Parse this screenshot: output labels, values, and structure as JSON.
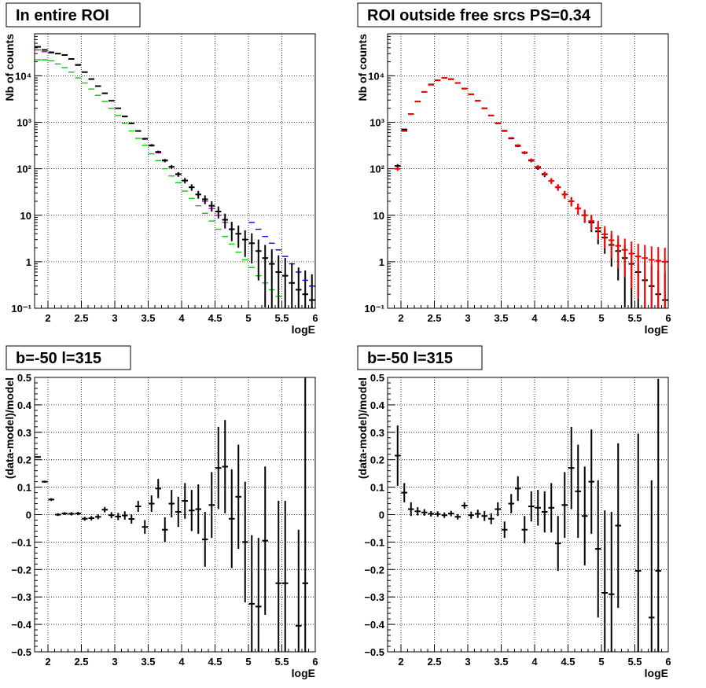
{
  "colors": {
    "data": "#000000",
    "model": "#ff0000",
    "blue": "#0000ff",
    "green": "#00cc00",
    "magenta": "#cc00cc"
  },
  "chart_data": [
    {
      "type": "scatter",
      "title": "In entire ROI",
      "xlabel": "logE",
      "ylabel": "Nb of counts",
      "xlim": [
        1.8,
        6
      ],
      "ylim": [
        0.1,
        80000
      ],
      "yscale": "log",
      "grid": true,
      "xticks": [
        {
          "v": 2,
          "t": "2"
        },
        {
          "v": 2.5,
          "t": "2.5"
        },
        {
          "v": 3,
          "t": "3"
        },
        {
          "v": 3.5,
          "t": "3.5"
        },
        {
          "v": 4,
          "t": "4"
        },
        {
          "v": 4.5,
          "t": "4.5"
        },
        {
          "v": 5,
          "t": "5"
        },
        {
          "v": 5.5,
          "t": "5.5"
        },
        {
          "v": 6,
          "t": "6"
        }
      ],
      "yticks": [
        {
          "v": 0.1,
          "t": "10⁻¹"
        },
        {
          "v": 1,
          "t": "1"
        },
        {
          "v": 10,
          "t": "10"
        },
        {
          "v": 100,
          "t": "10²"
        },
        {
          "v": 1000,
          "t": "10³"
        },
        {
          "v": 10000,
          "t": "10⁴"
        }
      ],
      "bin_halfwidth": 0.05,
      "series": [
        {
          "color": "#00cc00",
          "errbars": false,
          "x": [
            1.85,
            1.95,
            2.05,
            2.15,
            2.25,
            2.35,
            2.45,
            2.55,
            2.65,
            2.75,
            2.85,
            2.95,
            3.05,
            3.15,
            3.25,
            3.35,
            3.45,
            3.55,
            3.65,
            3.75,
            3.85,
            3.95,
            4.05,
            4.15,
            4.25,
            4.35,
            4.45,
            4.55,
            4.65,
            4.75,
            4.85,
            4.95,
            5.05,
            5.15,
            5.25,
            5.35,
            5.45
          ],
          "y": [
            22000,
            22000,
            21000,
            18000,
            15000,
            12000,
            9000,
            7000,
            5200,
            3800,
            2800,
            2000,
            1400,
            950,
            650,
            450,
            320,
            210,
            150,
            100,
            70,
            50,
            33,
            23,
            16,
            11,
            7.5,
            5,
            3.5,
            2.4,
            1.6,
            1.1,
            0.75,
            0.5,
            0.35,
            0.25,
            0.18
          ]
        },
        {
          "color": "#0000ff",
          "errbars": false,
          "x": [
            5.05,
            5.15,
            5.25,
            5.35,
            5.45,
            5.55,
            5.65,
            5.75,
            5.85,
            5.95
          ],
          "y": [
            7,
            5,
            3.5,
            2.5,
            1.8,
            1.3,
            0.9,
            0.6,
            0.4,
            0.3
          ]
        },
        {
          "color": "#cc00cc",
          "errbars": false,
          "x": [
            1.85,
            1.95,
            2.05,
            2.15,
            2.25,
            2.35,
            2.45,
            2.55,
            2.65,
            2.75,
            2.85,
            2.95,
            3.05,
            3.15,
            3.25,
            3.35,
            3.45,
            3.55,
            3.65,
            3.75,
            3.85,
            3.95,
            4.05,
            4.15,
            4.25,
            4.35,
            4.45,
            4.55,
            4.65,
            4.75
          ],
          "y": [
            36000,
            33000,
            31000,
            30000,
            28000,
            23000,
            17500,
            12000,
            8500,
            6000,
            4200,
            2900,
            2000,
            1350,
            950,
            650,
            450,
            310,
            220,
            155,
            110,
            78,
            55,
            40,
            28,
            20,
            14,
            10,
            7,
            5
          ]
        },
        {
          "color": "#000000",
          "errbars": true,
          "x": [
            1.85,
            1.95,
            2.05,
            2.15,
            2.25,
            2.35,
            2.45,
            2.55,
            2.65,
            2.75,
            2.85,
            2.95,
            3.05,
            3.15,
            3.25,
            3.35,
            3.45,
            3.55,
            3.65,
            3.75,
            3.85,
            3.95,
            4.05,
            4.15,
            4.25,
            4.35,
            4.45,
            4.55,
            4.65,
            4.75,
            4.85,
            4.95,
            5.05,
            5.15,
            5.25,
            5.35,
            5.45,
            5.55,
            5.65,
            5.75,
            5.85,
            5.95
          ],
          "y": [
            42000,
            36000,
            32000,
            30000,
            28000,
            23000,
            17000,
            12000,
            8500,
            6000,
            4200,
            2900,
            2000,
            1330,
            950,
            650,
            440,
            320,
            230,
            150,
            110,
            76,
            56,
            40,
            28,
            22,
            16,
            12,
            8,
            5,
            4,
            3,
            2.5,
            1.7,
            1.2,
            0.9,
            0.6,
            0.5,
            0.35,
            0.25,
            0.2,
            0.15
          ]
        }
      ]
    },
    {
      "type": "scatter",
      "title": "ROI outside free srcs PS=0.34",
      "xlabel": "logE",
      "ylabel": "Nb of counts",
      "xlim": [
        1.8,
        6
      ],
      "ylim": [
        0.1,
        80000
      ],
      "yscale": "log",
      "grid": true,
      "xticks": [
        {
          "v": 2,
          "t": "2"
        },
        {
          "v": 2.5,
          "t": "2.5"
        },
        {
          "v": 3,
          "t": "3"
        },
        {
          "v": 3.5,
          "t": "3.5"
        },
        {
          "v": 4,
          "t": "4"
        },
        {
          "v": 4.5,
          "t": "4.5"
        },
        {
          "v": 5,
          "t": "5"
        },
        {
          "v": 5.5,
          "t": "5.5"
        },
        {
          "v": 6,
          "t": "6"
        }
      ],
      "yticks": [
        {
          "v": 0.1,
          "t": "10⁻¹"
        },
        {
          "v": 1,
          "t": "1"
        },
        {
          "v": 10,
          "t": "10"
        },
        {
          "v": 100,
          "t": "10²"
        },
        {
          "v": 1000,
          "t": "10³"
        },
        {
          "v": 10000,
          "t": "10⁴"
        }
      ],
      "bin_halfwidth": 0.05,
      "series": [
        {
          "color": "#000000",
          "errbars": true,
          "x": [
            1.95,
            2.05,
            2.15,
            2.25,
            2.35,
            2.45,
            2.55,
            2.65,
            2.75,
            2.85,
            2.95,
            3.05,
            3.15,
            3.25,
            3.35,
            3.45,
            3.55,
            3.65,
            3.75,
            3.85,
            3.95,
            4.05,
            4.15,
            4.25,
            4.35,
            4.45,
            4.55,
            4.65,
            4.75,
            4.85,
            4.95,
            5.05,
            5.15,
            5.25,
            5.35,
            5.45,
            5.55,
            5.65,
            5.75,
            5.85,
            5.95
          ],
          "y": [
            115,
            700,
            1500,
            2800,
            4500,
            6500,
            8000,
            9000,
            8500,
            7000,
            5300,
            4000,
            2900,
            2000,
            1400,
            950,
            650,
            450,
            310,
            220,
            150,
            105,
            75,
            55,
            40,
            28,
            20,
            14,
            10,
            7,
            4.5,
            3.3,
            2.3,
            1.7,
            1.2,
            0.9,
            0.6,
            0.4,
            0.3,
            0.2,
            0.15
          ]
        },
        {
          "color": "#ff0000",
          "errbars": true,
          "x": [
            1.95,
            2.05,
            2.15,
            2.25,
            2.35,
            2.45,
            2.55,
            2.65,
            2.75,
            2.85,
            2.95,
            3.05,
            3.15,
            3.25,
            3.35,
            3.45,
            3.55,
            3.65,
            3.75,
            3.85,
            3.95,
            4.05,
            4.15,
            4.25,
            4.35,
            4.45,
            4.55,
            4.65,
            4.75,
            4.85,
            4.95,
            5.05,
            5.15,
            5.25,
            5.35,
            5.45,
            5.55,
            5.65,
            5.75,
            5.85,
            5.95
          ],
          "y": [
            100,
            650,
            1500,
            2800,
            4500,
            6400,
            8000,
            9000,
            8400,
            7000,
            5300,
            4000,
            2900,
            2000,
            1400,
            960,
            660,
            460,
            320,
            225,
            155,
            110,
            78,
            55,
            40,
            28,
            20,
            14,
            10,
            7.5,
            5.3,
            3.9,
            2.9,
            2.2,
            1.8,
            1.5,
            1.3,
            1.2,
            1.1,
            1.05,
            1.0
          ]
        }
      ]
    },
    {
      "type": "scatter",
      "title": "b=-50 l=315",
      "xlabel": "logE",
      "ylabel": "(data-model)/model",
      "xlim": [
        1.8,
        6
      ],
      "ylim": [
        -0.5,
        0.5
      ],
      "yscale": "linear",
      "grid": true,
      "xticks": [
        {
          "v": 2,
          "t": "2"
        },
        {
          "v": 2.5,
          "t": "2.5"
        },
        {
          "v": 3,
          "t": "3"
        },
        {
          "v": 3.5,
          "t": "3.5"
        },
        {
          "v": 4,
          "t": "4"
        },
        {
          "v": 4.5,
          "t": "4.5"
        },
        {
          "v": 5,
          "t": "5"
        },
        {
          "v": 5.5,
          "t": "5.5"
        },
        {
          "v": 6,
          "t": "6"
        }
      ],
      "yticks": [
        {
          "v": -0.5,
          "t": "−0.5"
        },
        {
          "v": -0.4,
          "t": "−0.4"
        },
        {
          "v": -0.3,
          "t": "−0.3"
        },
        {
          "v": -0.2,
          "t": "−0.2"
        },
        {
          "v": -0.1,
          "t": "−0.1"
        },
        {
          "v": 0,
          "t": "0"
        },
        {
          "v": 0.1,
          "t": "0.1"
        },
        {
          "v": 0.2,
          "t": "0.2"
        },
        {
          "v": 0.3,
          "t": "0.3"
        },
        {
          "v": 0.4,
          "t": "0.4"
        },
        {
          "v": 0.5,
          "t": "0.5"
        }
      ],
      "bin_halfwidth": 0.05,
      "series": [
        {
          "color": "#000000",
          "errbars": true,
          "x": [
            1.85,
            1.95,
            2.05,
            2.15,
            2.25,
            2.35,
            2.45,
            2.55,
            2.65,
            2.75,
            2.85,
            2.95,
            3.05,
            3.15,
            3.25,
            3.35,
            3.45,
            3.55,
            3.65,
            3.75,
            3.85,
            3.95,
            4.05,
            4.15,
            4.25,
            4.35,
            4.45,
            4.55,
            4.65,
            4.75,
            4.85,
            4.95,
            5.05,
            5.15,
            5.25,
            5.45,
            5.55,
            5.75,
            5.85
          ],
          "y": [
            0.21,
            0.12,
            0.055,
            0.0,
            0.004,
            0.003,
            0.004,
            -0.015,
            -0.013,
            -0.008,
            0.018,
            -0.002,
            -0.007,
            -0.003,
            -0.016,
            0.03,
            -0.045,
            0.04,
            0.095,
            -0.055,
            0.04,
            0.01,
            0.05,
            0.015,
            0.02,
            -0.09,
            0.035,
            0.17,
            0.175,
            -0.015,
            0.065,
            -0.1,
            -0.325,
            -0.335,
            -0.095,
            -0.25,
            -0.25,
            -0.405,
            -0.25
          ],
          "err": [
            0.003,
            0.004,
            0.005,
            0.005,
            0.005,
            0.006,
            0.006,
            0.007,
            0.008,
            0.009,
            0.01,
            0.011,
            0.013,
            0.015,
            0.017,
            0.02,
            0.025,
            0.03,
            0.035,
            0.045,
            0.05,
            0.055,
            0.065,
            0.075,
            0.09,
            0.1,
            0.12,
            0.15,
            0.17,
            0.18,
            0.19,
            0.22,
            0.25,
            0.25,
            0.27,
            0.3,
            0.3,
            0.35,
            0.75
          ]
        }
      ]
    },
    {
      "type": "scatter",
      "title": "b=-50 l=315",
      "xlabel": "logE",
      "ylabel": "(data-model)/model",
      "xlim": [
        1.8,
        6
      ],
      "ylim": [
        -0.5,
        0.5
      ],
      "yscale": "linear",
      "grid": true,
      "xticks": [
        {
          "v": 2,
          "t": "2"
        },
        {
          "v": 2.5,
          "t": "2.5"
        },
        {
          "v": 3,
          "t": "3"
        },
        {
          "v": 3.5,
          "t": "3.5"
        },
        {
          "v": 4,
          "t": "4"
        },
        {
          "v": 4.5,
          "t": "4.5"
        },
        {
          "v": 5,
          "t": "5"
        },
        {
          "v": 5.5,
          "t": "5.5"
        },
        {
          "v": 6,
          "t": "6"
        }
      ],
      "yticks": [
        {
          "v": -0.5,
          "t": "−0.5"
        },
        {
          "v": -0.4,
          "t": "−0.4"
        },
        {
          "v": -0.3,
          "t": "−0.3"
        },
        {
          "v": -0.2,
          "t": "−0.2"
        },
        {
          "v": -0.1,
          "t": "−0.1"
        },
        {
          "v": 0,
          "t": "0"
        },
        {
          "v": 0.1,
          "t": "0.1"
        },
        {
          "v": 0.2,
          "t": "0.2"
        },
        {
          "v": 0.3,
          "t": "0.3"
        },
        {
          "v": 0.4,
          "t": "0.4"
        },
        {
          "v": 0.5,
          "t": "0.5"
        }
      ],
      "bin_halfwidth": 0.05,
      "series": [
        {
          "color": "#000000",
          "errbars": true,
          "x": [
            1.95,
            2.05,
            2.15,
            2.25,
            2.35,
            2.45,
            2.55,
            2.65,
            2.75,
            2.85,
            2.95,
            3.05,
            3.15,
            3.25,
            3.35,
            3.45,
            3.55,
            3.65,
            3.75,
            3.85,
            3.95,
            4.05,
            4.15,
            4.25,
            4.35,
            4.45,
            4.55,
            4.65,
            4.75,
            4.85,
            4.95,
            5.05,
            5.15,
            5.25,
            5.55,
            5.75,
            5.85
          ],
          "y": [
            0.215,
            0.08,
            0.02,
            0.012,
            0.008,
            0.003,
            0.002,
            -0.002,
            0.004,
            -0.008,
            0.033,
            -0.002,
            0.003,
            -0.005,
            -0.015,
            0.02,
            -0.055,
            0.04,
            0.095,
            -0.055,
            0.03,
            0.025,
            0.01,
            0.025,
            -0.105,
            0.035,
            0.17,
            0.085,
            -0.005,
            0.12,
            -0.125,
            -0.285,
            -0.29,
            -0.04,
            -0.205,
            -0.375,
            -0.205
          ],
          "err": [
            0.11,
            0.035,
            0.025,
            0.015,
            0.012,
            0.01,
            0.01,
            0.01,
            0.01,
            0.01,
            0.012,
            0.013,
            0.015,
            0.018,
            0.02,
            0.025,
            0.03,
            0.035,
            0.045,
            0.05,
            0.055,
            0.065,
            0.075,
            0.09,
            0.1,
            0.12,
            0.15,
            0.17,
            0.18,
            0.19,
            0.25,
            0.3,
            0.3,
            0.3,
            0.5,
            0.5,
            0.7
          ]
        }
      ]
    }
  ]
}
